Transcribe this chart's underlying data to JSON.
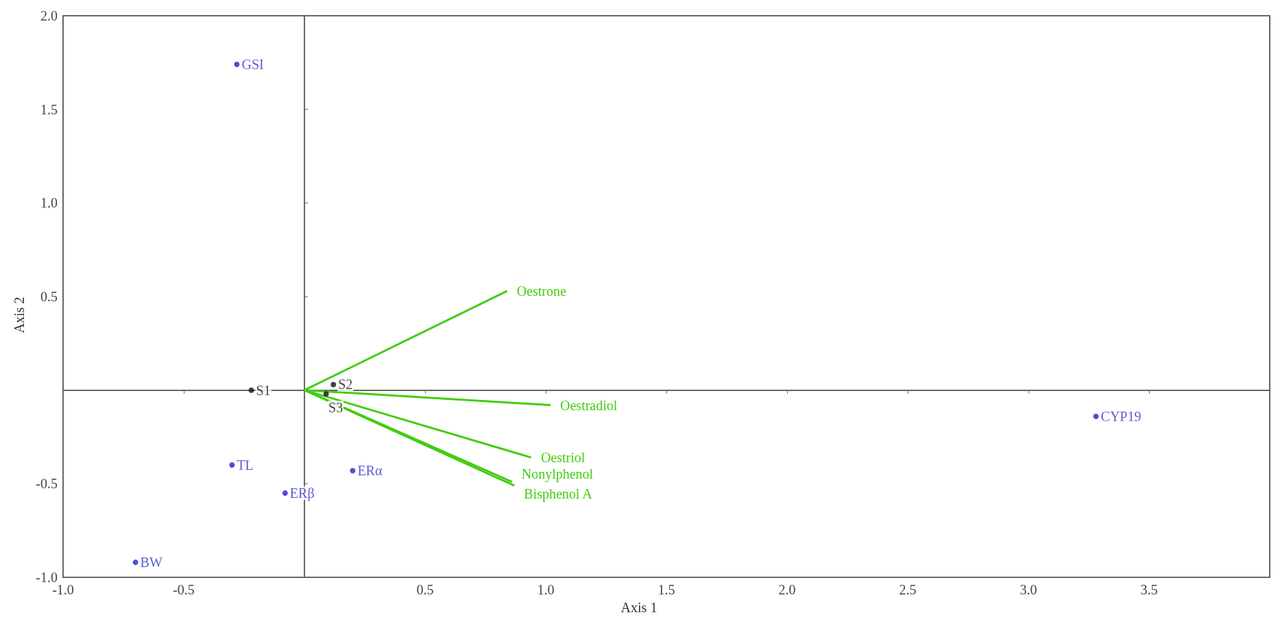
{
  "chart_data": {
    "type": "scatter",
    "xlabel": "Axis 1",
    "ylabel": "Axis 2",
    "xlim": [
      -1,
      4
    ],
    "ylim": [
      -1,
      2
    ],
    "xticks": [
      {
        "value": -1,
        "label": "-1.0"
      },
      {
        "value": -0.5,
        "label": "-0.5"
      },
      {
        "value": 0.5,
        "label": "0.5"
      },
      {
        "value": 1,
        "label": "1.0"
      },
      {
        "value": 1.5,
        "label": "1.5"
      },
      {
        "value": 2,
        "label": "2.0"
      },
      {
        "value": 2.5,
        "label": "2.5"
      },
      {
        "value": 3,
        "label": "3.0"
      },
      {
        "value": 3.5,
        "label": "3.5"
      }
    ],
    "yticks": [
      {
        "value": -1,
        "label": "-1.0"
      },
      {
        "value": -0.5,
        "label": "-0.5"
      },
      {
        "value": 0.5,
        "label": "0.5"
      },
      {
        "value": 1,
        "label": "1.0"
      },
      {
        "value": 1.5,
        "label": "1.5"
      },
      {
        "value": 2,
        "label": "2.0"
      }
    ],
    "legend": false,
    "series": [
      {
        "name": "GSI",
        "color": "#2222cc",
        "marker": "circle",
        "x": [
          -0.28
        ],
        "values": [
          1.74
        ]
      },
      {
        "name": "TL",
        "color": "#2222cc",
        "marker": "circle",
        "x": [
          -0.3
        ],
        "values": [
          -0.4
        ]
      },
      {
        "name": "ERβ",
        "color": "#2222cc",
        "marker": "circle",
        "x": [
          -0.08
        ],
        "values": [
          -0.55
        ]
      },
      {
        "name": "ERα",
        "color": "#2222cc",
        "marker": "circle",
        "x": [
          0.2
        ],
        "values": [
          -0.43
        ]
      },
      {
        "name": "BW",
        "color": "#2222cc",
        "marker": "circle",
        "x": [
          -0.7
        ],
        "values": [
          -0.92
        ]
      },
      {
        "name": "CYP19",
        "color": "#2222cc",
        "marker": "circle",
        "x": [
          3.28
        ],
        "values": [
          -0.14
        ]
      },
      {
        "name": "S1",
        "color": "#111111",
        "marker": "circle",
        "x": [
          -0.22
        ],
        "values": [
          0
        ]
      },
      {
        "name": "S2",
        "color": "#111111",
        "marker": "circle",
        "x": [
          0.12
        ],
        "values": [
          0.03
        ]
      },
      {
        "name": "S3",
        "color": "#111111",
        "marker": "circle",
        "x": [
          0.09
        ],
        "values": [
          -0.02
        ]
      },
      {
        "type": "line",
        "name": "Oestrone",
        "color": "#44cc11",
        "marker": "none",
        "x": [
          0,
          0.84
        ],
        "values": [
          0,
          0.53
        ]
      },
      {
        "type": "line",
        "name": "Oestradiol",
        "color": "#44cc11",
        "marker": "none",
        "x": [
          0,
          1.02
        ],
        "values": [
          0,
          -0.08
        ]
      },
      {
        "type": "line",
        "name": "Oestriol",
        "color": "#44cc11",
        "marker": "none",
        "x": [
          0,
          0.94
        ],
        "values": [
          0,
          -0.36
        ]
      },
      {
        "type": "line",
        "name": "Nonylphenol",
        "color": "#44cc11",
        "marker": "none",
        "x": [
          0,
          0.86
        ],
        "values": [
          0,
          -0.49
        ]
      },
      {
        "type": "line",
        "name": "Bisphenol A",
        "color": "#44cc11",
        "marker": "none",
        "x": [
          0,
          0.87
        ],
        "values": [
          0,
          -0.51
        ]
      }
    ]
  }
}
